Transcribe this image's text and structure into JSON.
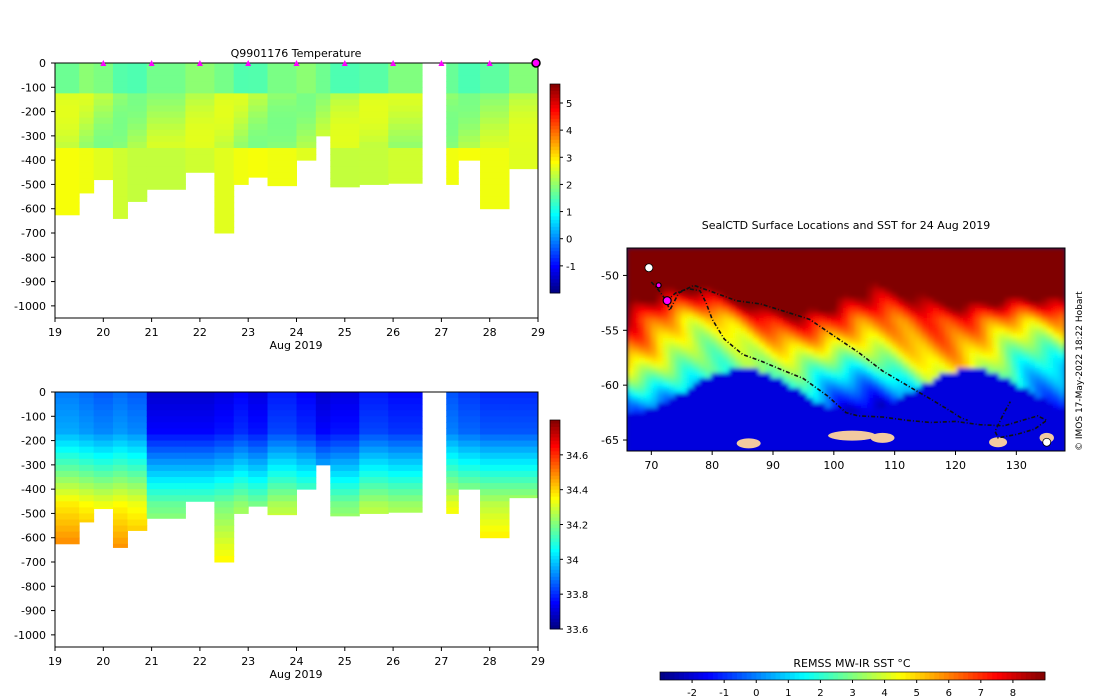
{
  "colors": {
    "land": "#f2caa0",
    "track": "#111111",
    "profile_marker": "#ff00ff",
    "background": "#ffffff"
  },
  "chart_data": [
    {
      "id": "temperature",
      "type": "heatmap",
      "title": "Q9901176  Temperature",
      "xlabel": "Aug 2019",
      "ylabel": "",
      "xlim": [
        19,
        29
      ],
      "ylim": [
        -1050,
        0
      ],
      "xticks": [
        19,
        20,
        21,
        22,
        23,
        24,
        25,
        26,
        27,
        28,
        29
      ],
      "yticks": [
        0,
        -100,
        -200,
        -300,
        -400,
        -500,
        -600,
        -700,
        -800,
        -900,
        -1000
      ],
      "colorbar": {
        "min": -2,
        "max": 5.7,
        "ticks": [
          -1,
          0,
          1,
          2,
          3,
          4,
          5
        ]
      },
      "surface_marker_days": [
        20,
        21,
        22,
        23,
        24,
        25,
        26,
        27,
        28
      ],
      "highlight_day": 29,
      "profiles": [
        {
          "day": 19.0,
          "max_depth": 625,
          "s": 33.9
        },
        {
          "day": 19.5,
          "max_depth": 535,
          "s": 33.88
        },
        {
          "day": 19.8,
          "max_depth": 480,
          "s": 33.86
        },
        {
          "day": 20.2,
          "max_depth": 640,
          "s": 33.88
        },
        {
          "day": 20.5,
          "max_depth": 570,
          "s": 33.86
        },
        {
          "day": 20.9,
          "max_depth": 520,
          "s": 33.7
        },
        {
          "day": 21.7,
          "max_depth": 450,
          "s": 33.7
        },
        {
          "day": 22.3,
          "max_depth": 700,
          "s": 33.72
        },
        {
          "day": 22.7,
          "max_depth": 500,
          "s": 33.75
        },
        {
          "day": 23.0,
          "max_depth": 470,
          "s": 33.72
        },
        {
          "day": 23.4,
          "max_depth": 505,
          "s": 33.78
        },
        {
          "day": 24.0,
          "max_depth": 400,
          "s": 33.75
        },
        {
          "day": 24.4,
          "max_depth": 300,
          "s": 33.7
        },
        {
          "day": 24.7,
          "max_depth": 510,
          "s": 33.72
        },
        {
          "day": 25.3,
          "max_depth": 500,
          "s": 33.78
        },
        {
          "day": 25.9,
          "max_depth": 495,
          "s": 33.76
        },
        {
          "day": 26.6,
          "max_depth": null,
          "s": null
        },
        {
          "day": 27.1,
          "max_depth": 500,
          "s": 33.85
        },
        {
          "day": 27.35,
          "max_depth": 400,
          "s": 33.82
        },
        {
          "day": 27.8,
          "max_depth": 600,
          "s": 33.8
        },
        {
          "day": 28.4,
          "max_depth": 435,
          "s": 33.8
        }
      ]
    },
    {
      "id": "salinity",
      "type": "heatmap",
      "title": "",
      "xlabel": "Aug 2019",
      "ylabel": "",
      "xlim": [
        19,
        29
      ],
      "ylim": [
        -1050,
        0
      ],
      "xticks": [
        19,
        20,
        21,
        22,
        23,
        24,
        25,
        26,
        27,
        28,
        29
      ],
      "yticks": [
        0,
        -100,
        -200,
        -300,
        -400,
        -500,
        -600,
        -700,
        -800,
        -900,
        -1000
      ],
      "colorbar": {
        "min": 33.6,
        "max": 34.8,
        "ticks": [
          33.6,
          33.8,
          34,
          34.2,
          34.4,
          34.6
        ]
      }
    },
    {
      "id": "sst-map",
      "type": "heatmap",
      "title": "SealCTD Surface Locations and SST for 24 Aug 2019",
      "xlim": [
        66,
        138
      ],
      "ylim": [
        -66,
        -47.5
      ],
      "xticks": [
        70,
        80,
        90,
        100,
        110,
        120,
        130
      ],
      "yticks": [
        -50,
        -55,
        -60,
        -65
      ],
      "credit": "© IMOS 17-May-2022 18:22 Hobart",
      "colorbar": {
        "label": "REMSS MW-IR SST °C",
        "min": -3,
        "max": 9,
        "ticks": [
          -2,
          -1,
          0,
          1,
          2,
          3,
          4,
          5,
          6,
          7,
          8
        ]
      },
      "tracks": [
        [
          [
            72.5,
            -52.3
          ],
          [
            74,
            -51.6
          ],
          [
            76,
            -51.2
          ],
          [
            78,
            -51.4
          ],
          [
            79,
            -52.5
          ],
          [
            80,
            -54
          ],
          [
            82,
            -55.8
          ],
          [
            85,
            -57.2
          ],
          [
            88,
            -57.8
          ],
          [
            91,
            -58.5
          ],
          [
            95,
            -59.4
          ],
          [
            99,
            -61
          ],
          [
            102,
            -62.5
          ],
          [
            104,
            -62.8
          ],
          [
            108,
            -62.9
          ],
          [
            112,
            -63.2
          ],
          [
            116,
            -63.4
          ],
          [
            120,
            -63.3
          ],
          [
            124,
            -63.6
          ],
          [
            128,
            -63.7
          ],
          [
            131,
            -63.2
          ],
          [
            133.5,
            -62.8
          ],
          [
            135,
            -63.2
          ],
          [
            133,
            -64
          ],
          [
            130,
            -64.5
          ],
          [
            127,
            -64.8
          ],
          [
            126.5,
            -64.2
          ],
          [
            128,
            -62.5
          ],
          [
            129,
            -61.5
          ]
        ],
        [
          [
            70,
            -50.6
          ],
          [
            71,
            -51.2
          ],
          [
            72.5,
            -52.3
          ],
          [
            73,
            -53.2
          ],
          [
            74.5,
            -51.6
          ],
          [
            77,
            -50.9
          ],
          [
            80,
            -51.5
          ],
          [
            84,
            -52.3
          ],
          [
            88,
            -52.6
          ],
          [
            92,
            -53.3
          ],
          [
            96,
            -54
          ],
          [
            100,
            -55.5
          ],
          [
            104,
            -57
          ],
          [
            108,
            -58.7
          ],
          [
            112,
            -60
          ],
          [
            116,
            -61.3
          ],
          [
            119,
            -62.3
          ],
          [
            121,
            -63
          ],
          [
            122,
            -63.2
          ]
        ]
      ],
      "profile_points": [
        [
          71.2,
          -50.9
        ],
        [
          72.6,
          -52.3
        ]
      ]
    }
  ]
}
